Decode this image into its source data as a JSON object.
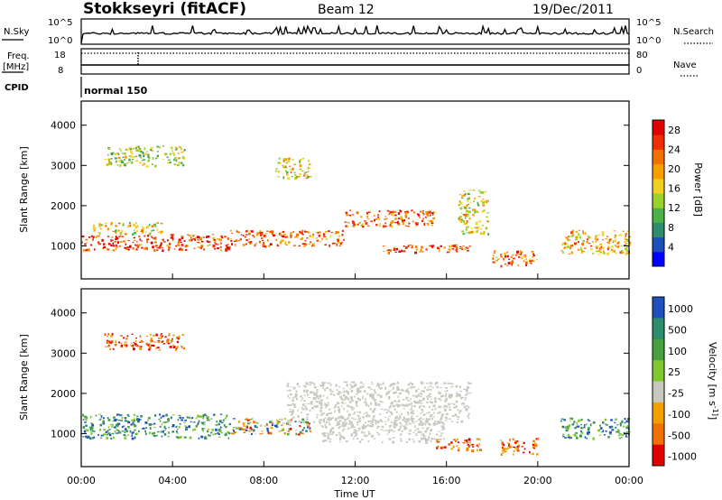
{
  "header": {
    "station": "Stokkseyri (fitACF)",
    "beam": "Beam 12",
    "date": "19/Dec/2011"
  },
  "top_panels": {
    "nsky_label": "N.Sky",
    "nsearch_label": "N.Search",
    "log_ticks": [
      "10^5",
      "10^0"
    ],
    "freq_label": "Freq.",
    "freq_unit": "[MHz]",
    "freq_ticks": [
      "18",
      "8"
    ],
    "nave_label": "Nave",
    "nave_ticks": [
      "80",
      "0"
    ],
    "cpid_label": "CPID",
    "cpid_value": "normal 150"
  },
  "x_axis": {
    "label": "Time UT",
    "ticks": [
      "00:00",
      "04:00",
      "08:00",
      "12:00",
      "16:00",
      "20:00",
      "00:00"
    ]
  },
  "chart_data": [
    {
      "type": "heatmap",
      "title": "",
      "xlabel": "Time UT",
      "ylabel": "Slant Range [km]",
      "x_range_hours": [
        0,
        24
      ],
      "ylim": [
        180,
        4600
      ],
      "y_ticks": [
        1000,
        2000,
        3000,
        4000
      ],
      "colorbar": {
        "label": "Power [dB]",
        "ticks": [
          4,
          8,
          12,
          16,
          20,
          24,
          28
        ],
        "range": [
          0,
          30
        ],
        "colors": [
          "#0000ff",
          "#1d4fb8",
          "#2f8c6c",
          "#4db04a",
          "#9bd12b",
          "#f0d020",
          "#f5a000",
          "#f07000",
          "#ee3000",
          "#e00000"
        ]
      },
      "regions": [
        {
          "t": [
            0.0,
            6.5
          ],
          "r": [
            900,
            1300
          ],
          "level": "28"
        },
        {
          "t": [
            6.5,
            11.5
          ],
          "r": [
            1000,
            1400
          ],
          "level": "24"
        },
        {
          "t": [
            0.5,
            3.5
          ],
          "r": [
            1300,
            1600
          ],
          "level": "16"
        },
        {
          "t": [
            11.5,
            15.5
          ],
          "r": [
            1500,
            1900
          ],
          "level": "24"
        },
        {
          "t": [
            13.0,
            17.0
          ],
          "r": [
            850,
            1050
          ],
          "level": "28"
        },
        {
          "t": [
            1.0,
            4.5
          ],
          "r": [
            3000,
            3500
          ],
          "level": "12"
        },
        {
          "t": [
            8.5,
            10.0
          ],
          "r": [
            2700,
            3200
          ],
          "level": "16"
        },
        {
          "t": [
            18.0,
            20.0
          ],
          "r": [
            500,
            900
          ],
          "level": "24"
        },
        {
          "t": [
            21.0,
            24.0
          ],
          "r": [
            800,
            1400
          ],
          "level": "20"
        },
        {
          "t": [
            16.5,
            17.8
          ],
          "r": [
            1300,
            2400
          ],
          "level": "16"
        }
      ]
    },
    {
      "type": "heatmap",
      "title": "",
      "xlabel": "Time UT",
      "ylabel": "Slant Range [km]",
      "x_range_hours": [
        0,
        24
      ],
      "ylim": [
        180,
        4600
      ],
      "y_ticks": [
        1000,
        2000,
        3000,
        4000
      ],
      "colorbar": {
        "label": "Velocity [m s^-1]",
        "ticks": [
          "1000",
          "500",
          "100",
          "25",
          "-25",
          "-100",
          "-500",
          "-1000"
        ],
        "colors": [
          "#2050c0",
          "#2f8c6c",
          "#46a040",
          "#7fc830",
          "#c8c8c0",
          "#f0a000",
          "#f07000",
          "#e00000"
        ]
      },
      "regions": [
        {
          "t": [
            0.0,
            6.5
          ],
          "r": [
            900,
            1500
          ],
          "level": "positive"
        },
        {
          "t": [
            6.5,
            10.0
          ],
          "r": [
            1000,
            1400
          ],
          "level": "mixed"
        },
        {
          "t": [
            9.0,
            17.0
          ],
          "r": [
            1300,
            2300
          ],
          "level": "ground-scatter"
        },
        {
          "t": [
            10.5,
            16.0
          ],
          "r": [
            800,
            1400
          ],
          "level": "ground-scatter"
        },
        {
          "t": [
            15.5,
            17.5
          ],
          "r": [
            600,
            900
          ],
          "level": "negative"
        },
        {
          "t": [
            18.2,
            20.0
          ],
          "r": [
            500,
            900
          ],
          "level": "negative"
        },
        {
          "t": [
            21.0,
            24.0
          ],
          "r": [
            900,
            1400
          ],
          "level": "positive"
        },
        {
          "t": [
            1.0,
            4.5
          ],
          "r": [
            3100,
            3500
          ],
          "level": "negative"
        }
      ]
    }
  ]
}
